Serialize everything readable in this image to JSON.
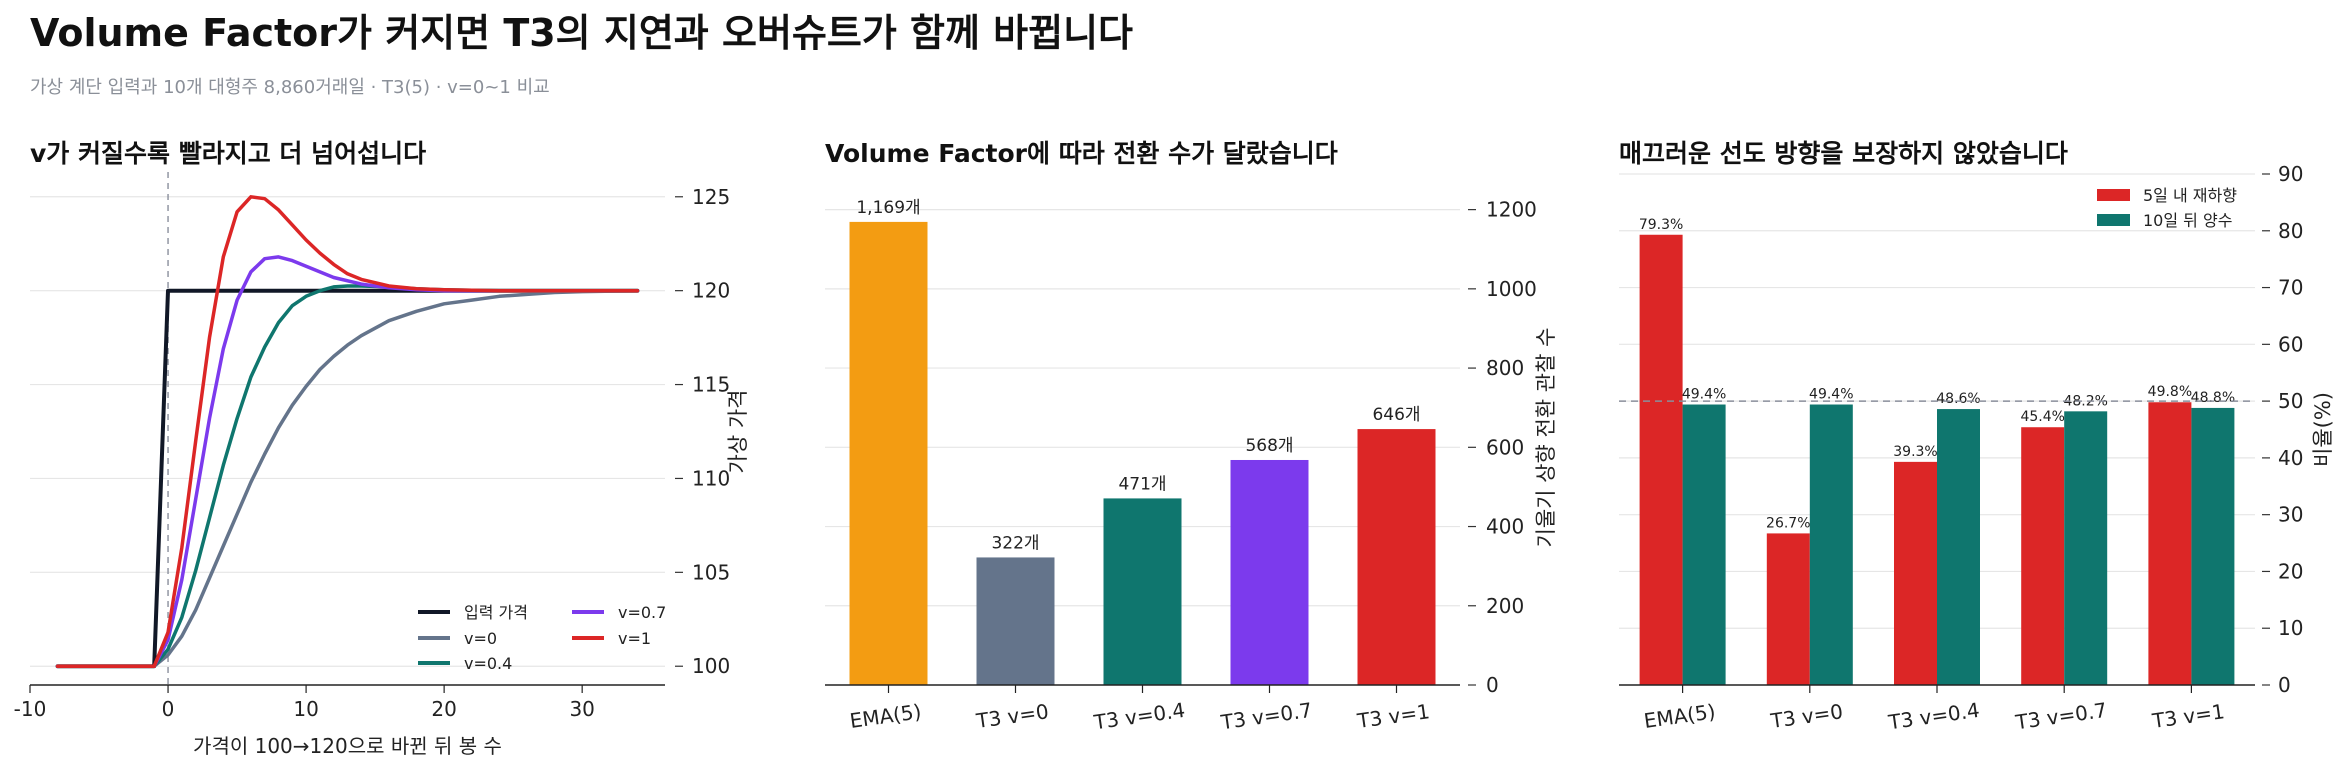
{
  "title": "Volume Factor가 커지면 T3의 지연과 오버슈트가 함께 바뀝니다",
  "subtitle": "가상 계단 입력과 10개 대형주 8,860거래일 · T3(5) · v=0~1 비교",
  "chart_data": [
    {
      "type": "line",
      "title": "v가 커질수록 빨라지고 더 넘어섭니다",
      "xlabel": "가격이 100→120으로 바뀐 뒤 봉 수",
      "ylabel": "가상 가격",
      "xlim": [
        -10,
        36
      ],
      "ylim": [
        99,
        126
      ],
      "x_ticks": [
        -10,
        0,
        10,
        20,
        30
      ],
      "y_ticks": [
        100,
        105,
        110,
        115,
        120,
        125
      ],
      "grid": true,
      "legend_position": "lower-right",
      "reference_line_x": 0,
      "series": [
        {
          "name": "입력 가격",
          "color": "#111827",
          "x": [
            -8,
            -1,
            0,
            1,
            34
          ],
          "y": [
            100,
            100,
            120,
            120,
            120
          ]
        },
        {
          "name": "v=0",
          "color": "#64748b",
          "x": [
            -8,
            -1,
            0,
            1,
            2,
            3,
            4,
            5,
            6,
            7,
            8,
            9,
            10,
            11,
            12,
            13,
            14,
            15,
            16,
            18,
            20,
            22,
            24,
            26,
            28,
            30,
            34
          ],
          "y": [
            100,
            100,
            100.6,
            101.6,
            103.0,
            104.7,
            106.4,
            108.1,
            109.8,
            111.3,
            112.7,
            113.9,
            114.9,
            115.8,
            116.5,
            117.1,
            117.6,
            118.0,
            118.4,
            118.9,
            119.3,
            119.5,
            119.7,
            119.8,
            119.9,
            119.95,
            120
          ]
        },
        {
          "name": "v=0.4",
          "color": "#0f766e",
          "x": [
            -8,
            -1,
            0,
            1,
            2,
            3,
            4,
            5,
            6,
            7,
            8,
            9,
            10,
            11,
            12,
            13,
            14,
            16,
            18,
            20,
            24,
            28,
            34
          ],
          "y": [
            100,
            100,
            100.9,
            102.6,
            105.1,
            107.9,
            110.7,
            113.2,
            115.4,
            117.0,
            118.3,
            119.2,
            119.7,
            120.0,
            120.2,
            120.25,
            120.25,
            120.2,
            120.1,
            120.05,
            120.0,
            120.0,
            120
          ]
        },
        {
          "name": "v=0.7",
          "color": "#7c3aed",
          "x": [
            -8,
            -1,
            0,
            1,
            2,
            3,
            4,
            5,
            6,
            7,
            8,
            9,
            10,
            11,
            12,
            14,
            16,
            18,
            20,
            24,
            28,
            34
          ],
          "y": [
            100,
            100,
            101.4,
            104.6,
            108.9,
            113.2,
            116.9,
            119.5,
            121.0,
            121.7,
            121.8,
            121.6,
            121.3,
            121.0,
            120.7,
            120.35,
            120.15,
            120.05,
            120.0,
            120.0,
            120.0,
            120
          ]
        },
        {
          "name": "v=1",
          "color": "#dc2626",
          "x": [
            -8,
            -1,
            0,
            1,
            2,
            3,
            4,
            5,
            6,
            7,
            8,
            9,
            10,
            11,
            12,
            13,
            14,
            16,
            18,
            20,
            24,
            28,
            34
          ],
          "y": [
            100,
            100,
            101.8,
            106.3,
            112.0,
            117.5,
            121.8,
            124.2,
            125.0,
            124.9,
            124.3,
            123.5,
            122.7,
            122.0,
            121.4,
            120.9,
            120.6,
            120.25,
            120.1,
            120.05,
            120.0,
            120.0,
            120
          ]
        }
      ]
    },
    {
      "type": "bar",
      "title": "Volume Factor에 따라 전환 수가 달랐습니다",
      "ylabel": "기울기 상향 전환 관찰 수",
      "categories": [
        "EMA(5)",
        "T3 v=0",
        "T3 v=0.4",
        "T3 v=0.7",
        "T3 v=1"
      ],
      "values": [
        1169,
        322,
        471,
        568,
        646
      ],
      "data_labels": [
        "1,169개",
        "322개",
        "471개",
        "568개",
        "646개"
      ],
      "colors": [
        "#f39c12",
        "#64748b",
        "#0f766e",
        "#7c3aed",
        "#dc2626"
      ],
      "ylim": [
        0,
        1300
      ],
      "y_ticks": [
        0,
        200,
        400,
        600,
        800,
        1000,
        1200
      ],
      "grid": true
    },
    {
      "type": "bar",
      "title": "매끄러운 선도 방향을 보장하지 않았습니다",
      "ylabel": "비율(%)",
      "categories": [
        "EMA(5)",
        "T3 v=0",
        "T3 v=0.4",
        "T3 v=0.7",
        "T3 v=1"
      ],
      "series": [
        {
          "name": "5일 내 재하향",
          "color": "#dc2626",
          "values": [
            79.3,
            26.7,
            39.3,
            45.4,
            49.8
          ]
        },
        {
          "name": "10일 뒤 양수",
          "color": "#0f766e",
          "values": [
            49.4,
            49.4,
            48.6,
            48.2,
            48.8
          ]
        }
      ],
      "ylim": [
        0,
        90
      ],
      "y_ticks": [
        0,
        10,
        20,
        30,
        40,
        50,
        60,
        70,
        80,
        90
      ],
      "reference_line_y": 50,
      "grid": true,
      "legend_position": "top-right"
    }
  ]
}
